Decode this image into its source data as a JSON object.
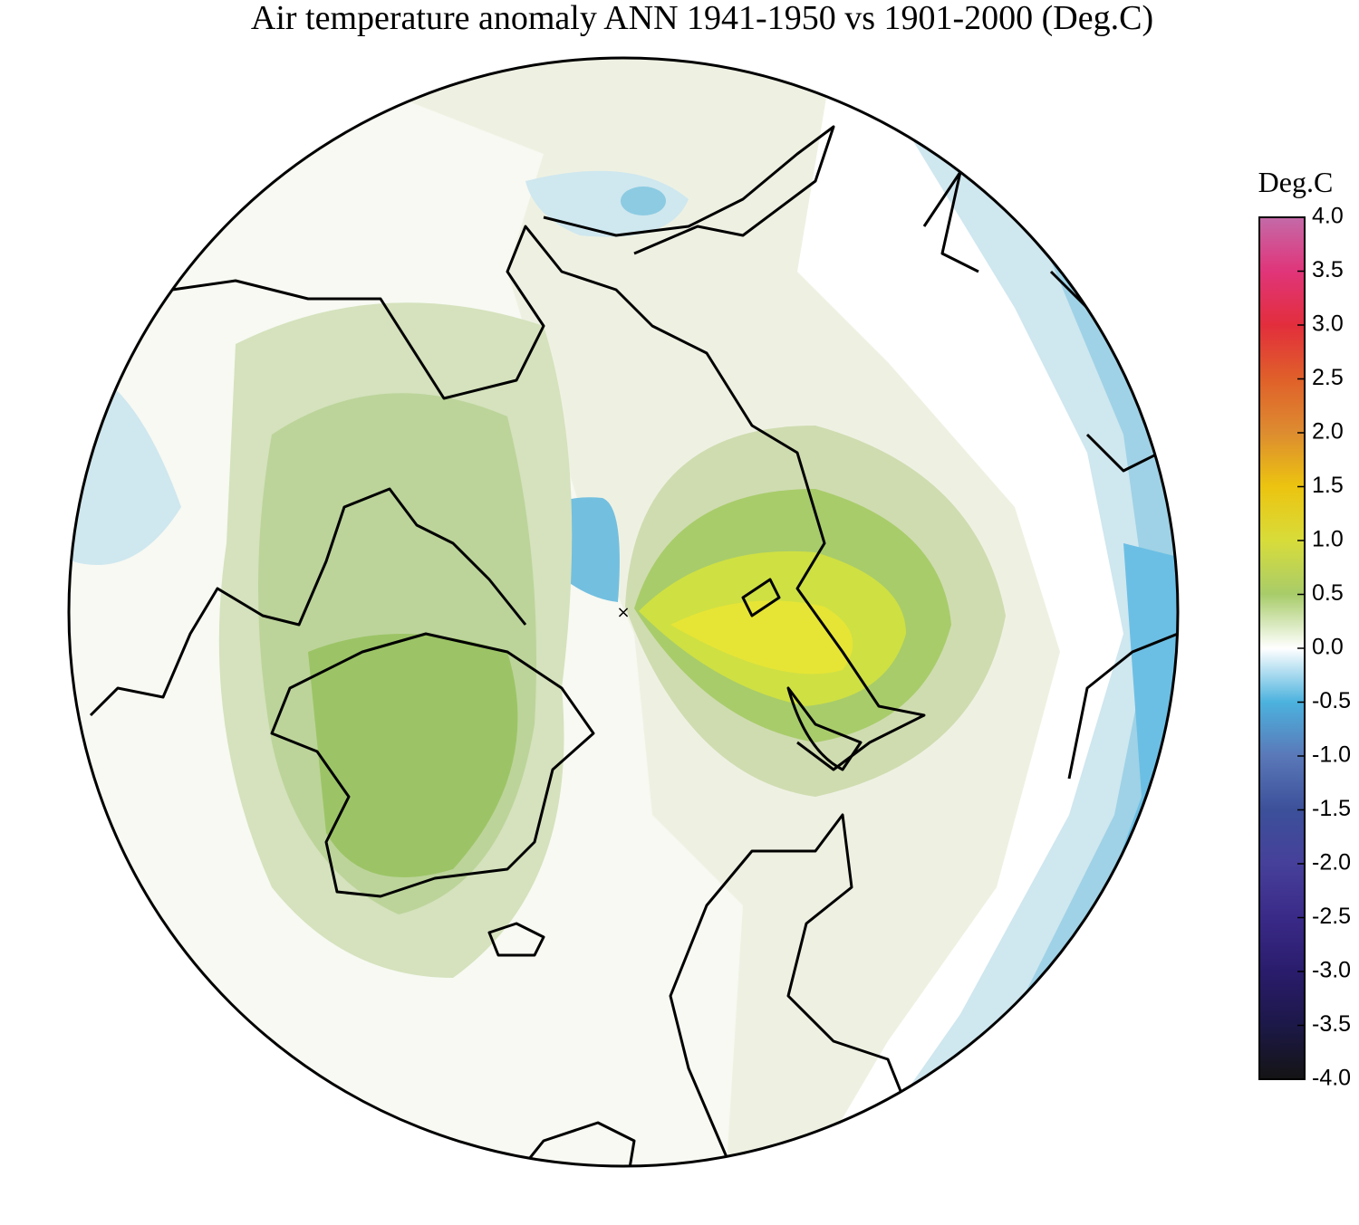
{
  "title": "Air temperature anomaly ANN 1941-1950 vs 1901-2000 (Deg.C)",
  "colorbar": {
    "label": "Deg.C",
    "lim": [
      -4,
      4
    ],
    "ticks": [
      {
        "value": 4,
        "label": "4.0"
      },
      {
        "value": 3.5,
        "label": "3.5"
      },
      {
        "value": 3,
        "label": "3.0"
      },
      {
        "value": 2.5,
        "label": "2.5"
      },
      {
        "value": 2,
        "label": "2.0"
      },
      {
        "value": 1.5,
        "label": "1.5"
      },
      {
        "value": 1,
        "label": "1.0"
      },
      {
        "value": 0.5,
        "label": "0.5"
      },
      {
        "value": 0,
        "label": "0.0"
      },
      {
        "value": -0.5,
        "label": "-0.5"
      },
      {
        "value": -1,
        "label": "-1.0"
      },
      {
        "value": -1.5,
        "label": "-1.5"
      },
      {
        "value": -2,
        "label": "-2.0"
      },
      {
        "value": -2.5,
        "label": "-2.5"
      },
      {
        "value": -3,
        "label": "-3.0"
      },
      {
        "value": -3.5,
        "label": "-3.5"
      },
      {
        "value": -4,
        "label": "-4.0"
      }
    ],
    "colors": [
      "#c46aa8",
      "#e0357a",
      "#e22e3c",
      "#e0602a",
      "#dd8c30",
      "#ecc410",
      "#d8dc3a",
      "#a8cc6a",
      "#ffffff",
      "#4cb2de",
      "#5a78b8",
      "#3c509a",
      "#46409a",
      "#3a2a88",
      "#2a1c6c",
      "#1c1848",
      "#141414"
    ]
  }
}
